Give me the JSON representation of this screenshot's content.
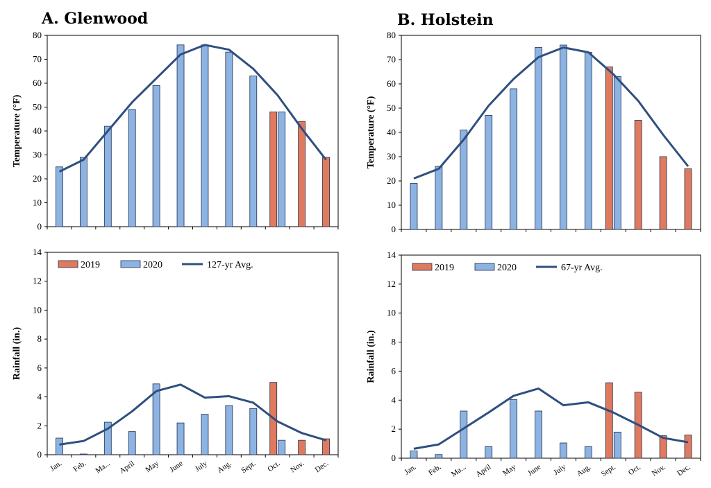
{
  "colors": {
    "bar_2019": "#E07A5F",
    "bar_2020": "#8DB3E2",
    "avg_line": "#2F4F7F",
    "bar_stroke": "#1F2D4A"
  },
  "chart_data": [
    {
      "type": "bar",
      "title": "A. Glenwood",
      "ylabel": "Temperature (°F)",
      "ylim": [
        0,
        80
      ],
      "yticks": [
        0,
        10,
        20,
        30,
        40,
        50,
        60,
        70,
        80
      ],
      "categories": [
        "Jan.",
        "Feb.",
        "Mar.",
        "April",
        "May",
        "June",
        "July",
        "Aug.",
        "Sept.",
        "Oct.",
        "Nov.",
        "Dec."
      ],
      "show_xticks": false,
      "series": [
        {
          "name": "2019",
          "kind": "bar",
          "values": [
            null,
            null,
            null,
            null,
            null,
            null,
            null,
            null,
            null,
            48,
            44,
            29
          ]
        },
        {
          "name": "2020",
          "kind": "bar",
          "values": [
            25,
            29,
            42,
            49,
            59,
            76,
            76,
            73,
            63,
            48,
            null,
            null
          ]
        },
        {
          "name": "127-yr Avg.",
          "kind": "line",
          "values": [
            23,
            28,
            40,
            52,
            62,
            72,
            76,
            74,
            66,
            55,
            41,
            28
          ]
        }
      ]
    },
    {
      "type": "bar",
      "title": "B. Holstein",
      "ylabel": "Temperature (°F)",
      "ylim": [
        0,
        80
      ],
      "yticks": [
        0,
        10,
        20,
        30,
        40,
        50,
        60,
        70,
        80
      ],
      "categories": [
        "Jan.",
        "Feb.",
        "Mar.",
        "April",
        "May",
        "June",
        "July",
        "Aug.",
        "Sept.",
        "Oct.",
        "Nov.",
        "Dec."
      ],
      "show_xticks": false,
      "series": [
        {
          "name": "2019",
          "kind": "bar",
          "values": [
            null,
            null,
            null,
            null,
            null,
            null,
            null,
            null,
            67,
            45,
            30,
            25
          ]
        },
        {
          "name": "2020",
          "kind": "bar",
          "values": [
            19,
            26,
            41,
            47,
            58,
            75,
            76,
            73,
            63,
            null,
            null,
            null
          ]
        },
        {
          "name": "67-yr Avg.",
          "kind": "line",
          "values": [
            21,
            25,
            37,
            51,
            62,
            71,
            75,
            73,
            64,
            53,
            39,
            26
          ]
        }
      ]
    },
    {
      "type": "bar",
      "ylabel": "Rainfall (in.)",
      "ylim": [
        0,
        14
      ],
      "yticks": [
        0,
        2,
        4,
        6,
        8,
        10,
        12,
        14
      ],
      "categories": [
        "Jan.",
        "Feb.",
        "Ma...",
        "April",
        "May",
        "June",
        "July",
        "Aug.",
        "Sept.",
        "Oct.",
        "Nov.",
        "Dec."
      ],
      "show_xticks": true,
      "legend": {
        "position": "top-left",
        "items": [
          "2019",
          "2020",
          "127-yr Avg."
        ]
      },
      "series": [
        {
          "name": "2019",
          "kind": "bar",
          "values": [
            null,
            null,
            null,
            null,
            null,
            null,
            null,
            null,
            null,
            5.0,
            1.0,
            1.1
          ]
        },
        {
          "name": "2020",
          "kind": "bar",
          "values": [
            1.15,
            0.05,
            2.25,
            1.6,
            4.9,
            2.2,
            2.8,
            3.4,
            3.2,
            1.0,
            null,
            null
          ]
        },
        {
          "name": "127-yr Avg.",
          "kind": "line",
          "values": [
            0.7,
            0.95,
            1.8,
            3.0,
            4.4,
            4.85,
            3.95,
            4.05,
            3.6,
            2.3,
            1.5,
            1.0
          ]
        }
      ]
    },
    {
      "type": "bar",
      "ylabel": "Rainfall (in.)",
      "ylim": [
        0,
        14
      ],
      "yticks": [
        0,
        2,
        4,
        6,
        8,
        10,
        12,
        14
      ],
      "categories": [
        "Jan.",
        "Feb.",
        "Ma...",
        "April",
        "May",
        "June",
        "July",
        "Aug.",
        "Sept.",
        "Oct.",
        "Nov.",
        "Dec."
      ],
      "show_xticks": true,
      "legend": {
        "position": "top-left",
        "items": [
          "2019",
          "2020",
          "67-yr Avg."
        ]
      },
      "series": [
        {
          "name": "2019",
          "kind": "bar",
          "values": [
            null,
            null,
            null,
            null,
            null,
            null,
            null,
            null,
            5.2,
            4.55,
            1.55,
            1.6
          ]
        },
        {
          "name": "2020",
          "kind": "bar",
          "values": [
            0.5,
            0.25,
            3.25,
            0.8,
            4.05,
            3.25,
            1.05,
            0.8,
            1.8,
            null,
            null,
            null
          ]
        },
        {
          "name": "67-yr Avg.",
          "kind": "line",
          "values": [
            0.65,
            0.95,
            2.05,
            3.15,
            4.3,
            4.8,
            3.65,
            3.85,
            3.15,
            2.3,
            1.4,
            1.1
          ]
        }
      ]
    }
  ]
}
